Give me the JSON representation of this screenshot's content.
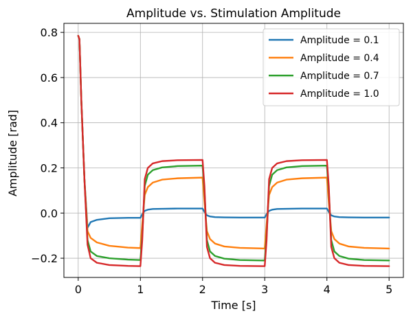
{
  "chart_data": {
    "type": "line",
    "title": "Amplitude vs. Stimulation Amplitude",
    "xlabel": "Time [s]",
    "ylabel": "Amplitude [rad]",
    "xlim": [
      -0.23,
      5.23
    ],
    "ylim": [
      -0.285,
      0.84
    ],
    "xticks": [
      0,
      1,
      2,
      3,
      4,
      5
    ],
    "xtick_labels": [
      "0",
      "1",
      "2",
      "3",
      "4",
      "5"
    ],
    "yticks": [
      -0.2,
      0.0,
      0.2,
      0.4,
      0.6,
      0.8
    ],
    "ytick_labels": [
      "−0.2",
      "0.0",
      "0.2",
      "0.4",
      "0.6",
      "0.8"
    ],
    "grid": true,
    "legend_position": "top-right",
    "series": [
      {
        "name": "Amplitude = 0.1",
        "color": "#1f77b4",
        "x": [
          0.0,
          0.02,
          0.05,
          0.1,
          0.15,
          0.2,
          0.3,
          0.5,
          0.8,
          1.0,
          1.03,
          1.07,
          1.12,
          1.2,
          1.35,
          1.6,
          2.0,
          2.03,
          2.07,
          2.12,
          2.2,
          2.35,
          2.6,
          3.0,
          3.03,
          3.07,
          3.12,
          3.2,
          3.35,
          3.6,
          4.0,
          4.03,
          4.07,
          4.12,
          4.2,
          4.35,
          4.6,
          5.0
        ],
        "y": [
          0.785,
          0.77,
          0.5,
          0.15,
          -0.065,
          -0.04,
          -0.03,
          -0.023,
          -0.021,
          -0.021,
          -0.005,
          0.01,
          0.015,
          0.018,
          0.019,
          0.02,
          0.02,
          0.005,
          -0.01,
          -0.015,
          -0.018,
          -0.019,
          -0.02,
          -0.02,
          -0.005,
          0.01,
          0.015,
          0.018,
          0.019,
          0.02,
          0.02,
          0.005,
          -0.01,
          -0.015,
          -0.018,
          -0.019,
          -0.02,
          -0.02
        ]
      },
      {
        "name": "Amplitude = 0.4",
        "color": "#ff7f0e",
        "x": [
          0.0,
          0.02,
          0.05,
          0.1,
          0.15,
          0.2,
          0.3,
          0.5,
          0.8,
          1.0,
          1.03,
          1.07,
          1.12,
          1.2,
          1.35,
          1.6,
          2.0,
          2.03,
          2.07,
          2.12,
          2.2,
          2.35,
          2.6,
          3.0,
          3.03,
          3.07,
          3.12,
          3.2,
          3.35,
          3.6,
          4.0,
          4.03,
          4.07,
          4.12,
          4.2,
          4.35,
          4.6,
          5.0
        ],
        "y": [
          0.785,
          0.77,
          0.5,
          0.15,
          -0.08,
          -0.11,
          -0.13,
          -0.145,
          -0.153,
          -0.155,
          -0.05,
          0.08,
          0.115,
          0.135,
          0.148,
          0.154,
          0.157,
          0.05,
          -0.08,
          -0.115,
          -0.135,
          -0.148,
          -0.154,
          -0.157,
          -0.05,
          0.08,
          0.115,
          0.135,
          0.148,
          0.154,
          0.157,
          0.05,
          -0.08,
          -0.115,
          -0.135,
          -0.148,
          -0.154,
          -0.157
        ]
      },
      {
        "name": "Amplitude = 0.7",
        "color": "#2ca02c",
        "x": [
          0.0,
          0.02,
          0.05,
          0.1,
          0.15,
          0.2,
          0.3,
          0.5,
          0.8,
          1.0,
          1.03,
          1.07,
          1.12,
          1.2,
          1.35,
          1.6,
          2.0,
          2.03,
          2.07,
          2.12,
          2.2,
          2.35,
          2.6,
          3.0,
          3.03,
          3.07,
          3.12,
          3.2,
          3.35,
          3.6,
          4.0,
          4.03,
          4.07,
          4.12,
          4.2,
          4.35,
          4.6,
          5.0
        ],
        "y": [
          0.785,
          0.77,
          0.5,
          0.15,
          -0.12,
          -0.17,
          -0.19,
          -0.2,
          -0.206,
          -0.208,
          -0.1,
          0.12,
          0.17,
          0.19,
          0.202,
          0.208,
          0.21,
          0.1,
          -0.12,
          -0.17,
          -0.19,
          -0.202,
          -0.208,
          -0.21,
          -0.1,
          0.12,
          0.17,
          0.19,
          0.202,
          0.208,
          0.21,
          0.1,
          -0.12,
          -0.17,
          -0.19,
          -0.202,
          -0.208,
          -0.21
        ]
      },
      {
        "name": "Amplitude = 1.0",
        "color": "#d62728",
        "x": [
          0.0,
          0.02,
          0.05,
          0.1,
          0.15,
          0.2,
          0.3,
          0.5,
          0.8,
          1.0,
          1.03,
          1.07,
          1.12,
          1.2,
          1.35,
          1.6,
          2.0,
          2.03,
          2.07,
          2.12,
          2.2,
          2.35,
          2.6,
          3.0,
          3.03,
          3.07,
          3.12,
          3.2,
          3.35,
          3.6,
          4.0,
          4.03,
          4.07,
          4.12,
          4.2,
          4.35,
          4.6,
          5.0
        ],
        "y": [
          0.785,
          0.77,
          0.5,
          0.15,
          -0.14,
          -0.2,
          -0.22,
          -0.23,
          -0.234,
          -0.235,
          -0.12,
          0.15,
          0.2,
          0.22,
          0.23,
          0.234,
          0.235,
          0.12,
          -0.15,
          -0.2,
          -0.22,
          -0.23,
          -0.234,
          -0.235,
          -0.12,
          0.15,
          0.2,
          0.22,
          0.23,
          0.234,
          0.235,
          0.12,
          -0.15,
          -0.2,
          -0.22,
          -0.23,
          -0.234,
          -0.235
        ]
      }
    ]
  }
}
